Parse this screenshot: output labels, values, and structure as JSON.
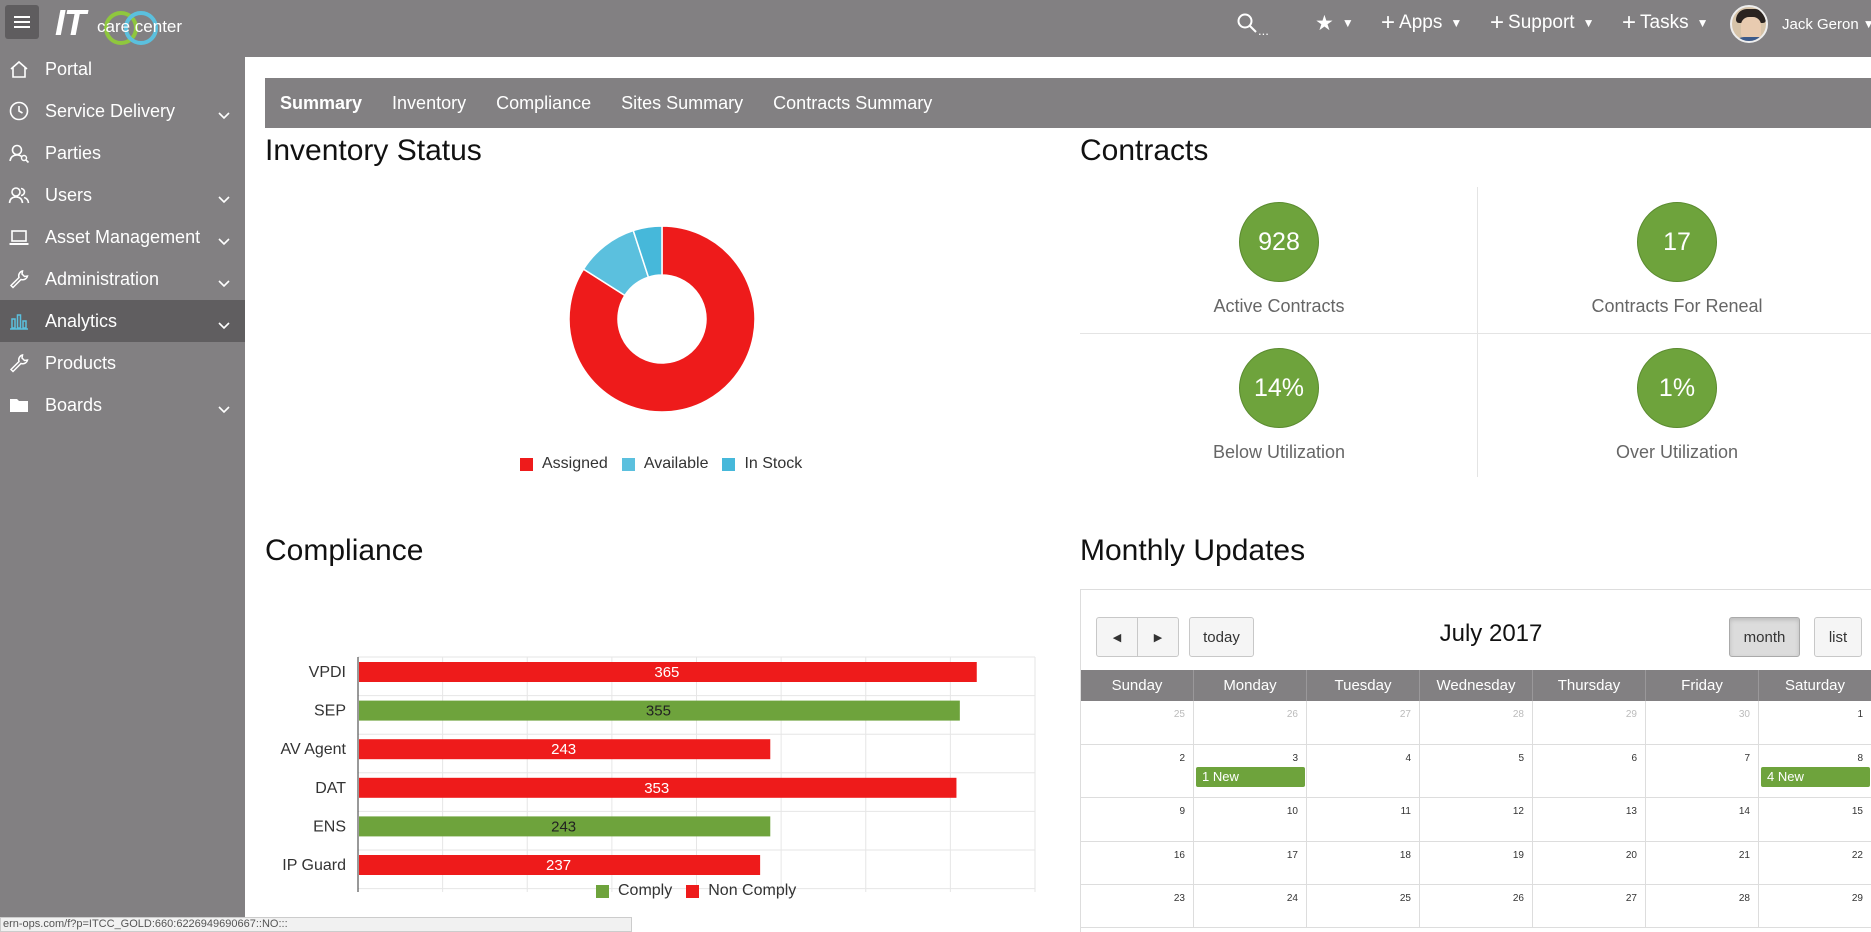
{
  "header": {
    "logo_it": "IT",
    "logo_text": "care center",
    "search_ellipsis": "...",
    "apps_label": "Apps",
    "support_label": "Support",
    "tasks_label": "Tasks",
    "user_name": "Jack Geron",
    "plus_glyph": "+",
    "star_glyph": "★",
    "caret_glyph": "▼"
  },
  "sidebar": {
    "items": [
      {
        "label": "Portal",
        "icon": "home-icon",
        "expandable": false
      },
      {
        "label": "Service Delivery",
        "icon": "clock-icon",
        "expandable": true
      },
      {
        "label": "Parties",
        "icon": "person-search-icon",
        "expandable": false
      },
      {
        "label": "Users",
        "icon": "users-icon",
        "expandable": true
      },
      {
        "label": "Asset Management",
        "icon": "laptop-icon",
        "expandable": true
      },
      {
        "label": "Administration",
        "icon": "wrench-icon",
        "expandable": true
      },
      {
        "label": "Analytics",
        "icon": "bar-chart-icon",
        "expandable": true
      },
      {
        "label": "Products",
        "icon": "wrench-icon",
        "expandable": false
      },
      {
        "label": "Boards",
        "icon": "folder-icon",
        "expandable": true
      }
    ],
    "active_index": 6
  },
  "tabs": [
    "Summary",
    "Inventory",
    "Compliance",
    "Sites Summary",
    "Contracts Summary"
  ],
  "inventory": {
    "title": "Inventory Status",
    "legend": [
      {
        "label": "Assigned",
        "color": "#ee1b1b"
      },
      {
        "label": "Available",
        "color": "#5bc0de"
      },
      {
        "label": "In Stock",
        "color": "#46b8da"
      }
    ]
  },
  "contracts": {
    "title": "Contracts",
    "kpis": [
      {
        "value": "928",
        "label": "Active Contracts"
      },
      {
        "value": "17",
        "label": "Contracts For Reneal"
      },
      {
        "value": "14%",
        "label": "Below Utilization"
      },
      {
        "value": "1%",
        "label": "Over Utilization"
      }
    ]
  },
  "compliance": {
    "title": "Compliance",
    "legend": [
      {
        "label": "Comply",
        "color": "#6ea33c"
      },
      {
        "label": "Non Comply",
        "color": "#ee1b1b"
      }
    ]
  },
  "chart_data": [
    {
      "type": "pie",
      "donut": true,
      "labels": [
        "Assigned",
        "Available",
        "In Stock"
      ],
      "values": [
        84,
        11,
        5
      ],
      "colors": [
        "#ee1b1b",
        "#5bc0de",
        "#46b8da"
      ],
      "legend": "bottom"
    },
    {
      "type": "bar",
      "orientation": "horizontal",
      "categories": [
        "VPDI",
        "SEP",
        "AV Agent",
        "DAT",
        "ENS",
        "IP Guard"
      ],
      "values": [
        365,
        355,
        243,
        353,
        243,
        237
      ],
      "status": [
        "Non Comply",
        "Comply",
        "Non Comply",
        "Non Comply",
        "Comply",
        "Non Comply"
      ],
      "xlim": [
        0,
        400
      ],
      "xticks": [
        0,
        50,
        100,
        150,
        200,
        250,
        300,
        350,
        400
      ],
      "grid": true,
      "legend": "bottom"
    }
  ],
  "monthly": {
    "title": "Monthly Updates",
    "month_title": "July 2017",
    "prev_glyph": "◀",
    "next_glyph": "▶",
    "today_label": "today",
    "month_label": "month",
    "list_label": "list",
    "day_headers": [
      "Sunday",
      "Monday",
      "Tuesday",
      "Wednesday",
      "Thursday",
      "Friday",
      "Saturday"
    ],
    "weeks": [
      [
        "25",
        "26",
        "27",
        "28",
        "29",
        "30",
        "1"
      ],
      [
        "2",
        "3",
        "4",
        "5",
        "6",
        "7",
        "8"
      ],
      [
        "9",
        "10",
        "11",
        "12",
        "13",
        "14",
        "15"
      ],
      [
        "16",
        "17",
        "18",
        "19",
        "20",
        "21",
        "22"
      ],
      [
        "23",
        "24",
        "25",
        "26",
        "27",
        "28",
        "29"
      ]
    ],
    "other_month": [
      [
        true,
        true,
        true,
        true,
        true,
        true,
        false
      ],
      [
        false,
        false,
        false,
        false,
        false,
        false,
        false
      ],
      [
        false,
        false,
        false,
        false,
        false,
        false,
        false
      ],
      [
        false,
        false,
        false,
        false,
        false,
        false,
        false
      ],
      [
        false,
        false,
        false,
        false,
        false,
        false,
        false
      ]
    ],
    "events": [
      {
        "week": 1,
        "day": 1,
        "label": "1 New"
      },
      {
        "week": 1,
        "day": 6,
        "label": "4 New"
      }
    ]
  },
  "statusbar": {
    "url": "ern-ops.com/f?p=ITCC_GOLD:660:6226949690667::NO:::"
  }
}
